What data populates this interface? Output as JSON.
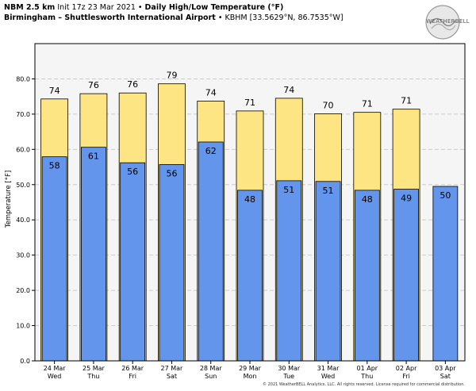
{
  "header": {
    "line1_bold1": "NBM 2.5 km",
    "line1_text1": "Init 17z 23 Mar 2021",
    "line1_sep": "•",
    "line1_bold2": "Daily High/Low Temperature (°F)",
    "line2_bold": "Birmingham – Shuttlesworth International Airport",
    "line2_sep": "•",
    "line2_text": "KBHM [33.5629°N, 86.7535°W]"
  },
  "logo": {
    "text": "WEATHERBELL"
  },
  "footer": {
    "copyright": "© 2021 WeatherBELL Analytics, LLC. All rights reserved. License required for commercial distribution."
  },
  "colors": {
    "high": "#fde583",
    "low": "#6495ed",
    "background": "#f5f5f5",
    "grid": "#cccccc",
    "border": "#000000"
  },
  "chart_data": {
    "type": "bar",
    "title": "",
    "xlabel": "",
    "ylabel": "Temperature [°F]",
    "ylim": [
      0,
      90
    ],
    "yticks": [
      "0.0",
      "10.0",
      "20.0",
      "30.0",
      "40.0",
      "50.0",
      "60.0",
      "70.0",
      "80.0"
    ],
    "grid": true,
    "categories": [
      [
        "24 Mar",
        "Wed"
      ],
      [
        "25 Mar",
        "Thu"
      ],
      [
        "26 Mar",
        "Fri"
      ],
      [
        "27 Mar",
        "Sat"
      ],
      [
        "28 Mar",
        "Sun"
      ],
      [
        "29 Mar",
        "Mon"
      ],
      [
        "30 Mar",
        "Tue"
      ],
      [
        "31 Mar",
        "Wed"
      ],
      [
        "01 Apr",
        "Thu"
      ],
      [
        "02 Apr",
        "Fri"
      ],
      [
        "03 Apr",
        "Sat"
      ]
    ],
    "series": [
      {
        "key": "high",
        "values": [
          74.3,
          75.8,
          76.0,
          78.6,
          73.7,
          70.9,
          74.5,
          70.1,
          70.5,
          71.4,
          null
        ],
        "labels": [
          "74",
          "76",
          "76",
          "79",
          "74",
          "71",
          "74",
          "70",
          "71",
          "71",
          ""
        ]
      },
      {
        "key": "low",
        "values": [
          57.9,
          60.6,
          56.2,
          55.7,
          62.1,
          48.4,
          51.1,
          50.9,
          48.4,
          48.7,
          49.5
        ],
        "labels": [
          "58",
          "61",
          "56",
          "56",
          "62",
          "48",
          "51",
          "51",
          "48",
          "49",
          "50"
        ]
      }
    ]
  }
}
